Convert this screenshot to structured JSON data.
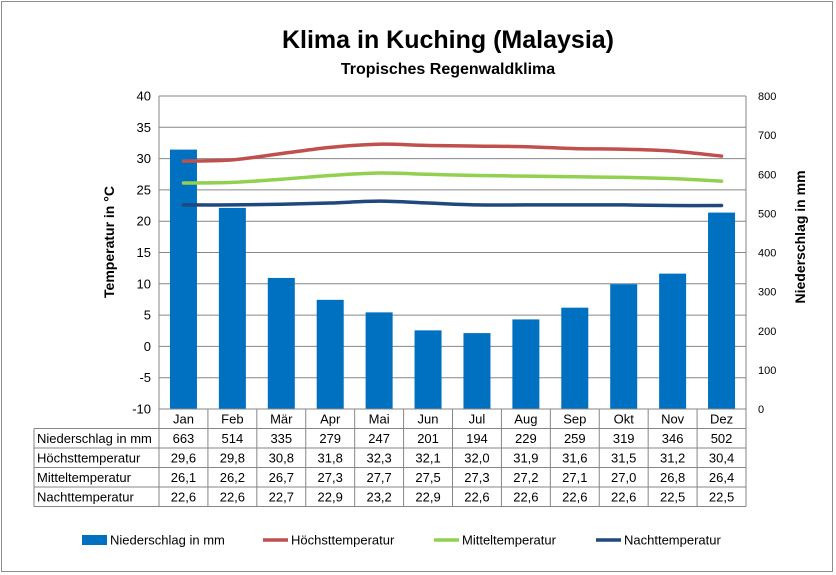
{
  "colors": {
    "precipitation": "#0070c0",
    "max_temp": "#c0504d",
    "mean_temp": "#92d050",
    "night_temp": "#1f497d",
    "grid": "#868686"
  },
  "chart_data": {
    "type": "bar",
    "title": "Klima in Kuching (Malaysia)",
    "subtitle": "Tropisches Regenwaldklima",
    "ylabel_left": "Temperatur in °C",
    "ylabel_right": "Niederschlag in mm",
    "ylim_left": [
      -10,
      40
    ],
    "ylim_right": [
      0,
      800
    ],
    "yticks_left": [
      "40",
      "35",
      "30",
      "25",
      "20",
      "15",
      "10",
      "5",
      "0",
      "-5",
      "-10"
    ],
    "yticks_right": [
      "800",
      "700",
      "600",
      "500",
      "400",
      "300",
      "200",
      "100",
      "0"
    ],
    "categories": [
      "Jan",
      "Feb",
      "Mär",
      "Apr",
      "Mai",
      "Jun",
      "Jul",
      "Aug",
      "Sep",
      "Okt",
      "Nov",
      "Dez"
    ],
    "series": [
      {
        "name": "Niederschlag in mm",
        "type": "bar",
        "axis": "right",
        "values": [
          663,
          514,
          335,
          279,
          247,
          201,
          194,
          229,
          259,
          319,
          346,
          502
        ],
        "labels": [
          "663",
          "514",
          "335",
          "279",
          "247",
          "201",
          "194",
          "229",
          "259",
          "319",
          "346",
          "502"
        ]
      },
      {
        "name": "Höchsttemperatur",
        "type": "line",
        "axis": "left",
        "values": [
          29.6,
          29.8,
          30.8,
          31.8,
          32.3,
          32.1,
          32.0,
          31.9,
          31.6,
          31.5,
          31.2,
          30.4
        ],
        "labels": [
          "29,6",
          "29,8",
          "30,8",
          "31,8",
          "32,3",
          "32,1",
          "32,0",
          "31,9",
          "31,6",
          "31,5",
          "31,2",
          "30,4"
        ]
      },
      {
        "name": "Mitteltemperatur",
        "type": "line",
        "axis": "left",
        "values": [
          26.1,
          26.2,
          26.7,
          27.3,
          27.7,
          27.5,
          27.3,
          27.2,
          27.1,
          27.0,
          26.8,
          26.4
        ],
        "labels": [
          "26,1",
          "26,2",
          "26,7",
          "27,3",
          "27,7",
          "27,5",
          "27,3",
          "27,2",
          "27,1",
          "27,0",
          "26,8",
          "26,4"
        ]
      },
      {
        "name": "Nachttemperatur",
        "type": "line",
        "axis": "left",
        "values": [
          22.6,
          22.6,
          22.7,
          22.9,
          23.2,
          22.9,
          22.6,
          22.6,
          22.6,
          22.6,
          22.5,
          22.5
        ],
        "labels": [
          "22,6",
          "22,6",
          "22,7",
          "22,9",
          "23,2",
          "22,9",
          "22,6",
          "22,6",
          "22,6",
          "22,6",
          "22,5",
          "22,5"
        ]
      }
    ],
    "data_table": true,
    "legend_position": "bottom"
  }
}
